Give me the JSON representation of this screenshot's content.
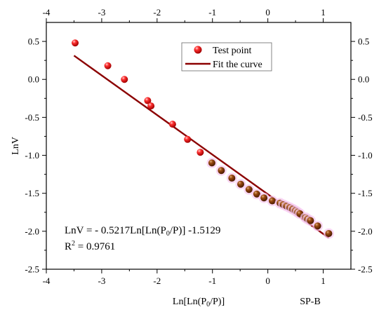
{
  "chart_data": {
    "type": "scatter",
    "title": "",
    "xlabel_prefix": "Ln[Ln(P",
    "xlabel_sub": "0",
    "xlabel_suffix": "/P)]",
    "ylabel": "LnV",
    "panel_label": "SP-B",
    "xlim": [
      -4,
      1.5
    ],
    "ylim": [
      -2.5,
      0.75
    ],
    "x_ticks": [
      -4,
      -3,
      -2,
      -1,
      0,
      1
    ],
    "x_tick_labels": [
      "-4",
      "-3",
      "-2",
      "-1",
      "0",
      "1"
    ],
    "y_ticks": [
      0.5,
      0.0,
      -0.5,
      -1.0,
      -1.5,
      -2.0,
      -2.5
    ],
    "y_tick_labels": [
      "0.5",
      "0.0",
      "-0.5",
      "-1.0",
      "-1.5",
      "-2.0",
      "-2.5"
    ],
    "grid": false,
    "legend_position": "top-right-inside",
    "legend": {
      "points": "Test point",
      "fit": "Fit the curve"
    },
    "series": [
      {
        "name": "Test point",
        "color": "#ee1c1c",
        "x": [
          -3.48,
          -2.89,
          -2.59,
          -2.17,
          -2.11,
          -1.72,
          -1.45,
          -1.22,
          -1.01,
          -0.84,
          -0.65,
          -0.49,
          -0.34,
          -0.2,
          -0.07,
          0.08,
          0.22,
          0.28,
          0.34,
          0.4,
          0.45,
          0.5,
          0.54,
          0.58,
          0.68,
          0.72,
          0.77,
          0.9,
          1.1
        ],
        "y": [
          0.48,
          0.18,
          0.0,
          -0.28,
          -0.35,
          -0.59,
          -0.79,
          -0.96,
          -1.1,
          -1.2,
          -1.3,
          -1.38,
          -1.45,
          -1.51,
          -1.56,
          -1.6,
          -1.63,
          -1.65,
          -1.67,
          -1.69,
          -1.71,
          -1.73,
          -1.75,
          -1.77,
          -1.82,
          -1.84,
          -1.86,
          -1.93,
          -2.03
        ]
      }
    ],
    "fit": {
      "name": "Fit the curve",
      "color": "#8b0000",
      "slope": -0.5217,
      "intercept": -1.5129,
      "x_range": [
        -3.5,
        1.1
      ]
    },
    "annotation": {
      "equation_prefix": "LnV = - 0.5217Ln[Ln(P",
      "equation_sub": "0",
      "equation_suffix": "/P)] -1.5129",
      "r2_prefix": "R",
      "r2_sup": "2",
      "r2_suffix": " = 0.9761"
    }
  }
}
